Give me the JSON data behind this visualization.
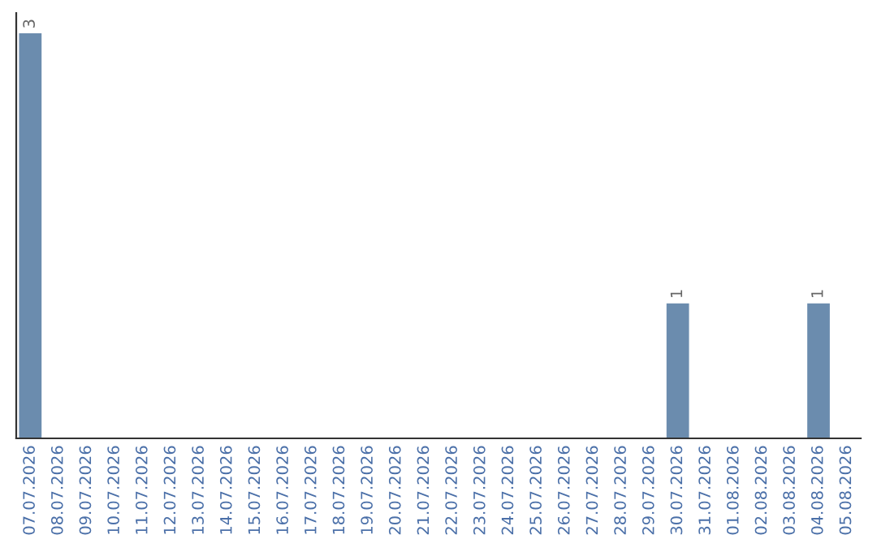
{
  "chart_data": {
    "type": "bar",
    "categories": [
      "07.07.2026",
      "08.07.2026",
      "09.07.2026",
      "10.07.2026",
      "11.07.2026",
      "12.07.2026",
      "13.07.2026",
      "14.07.2026",
      "15.07.2026",
      "16.07.2026",
      "17.07.2026",
      "18.07.2026",
      "19.07.2026",
      "20.07.2026",
      "21.07.2026",
      "22.07.2026",
      "23.07.2026",
      "24.07.2026",
      "25.07.2026",
      "26.07.2026",
      "27.07.2026",
      "28.07.2026",
      "29.07.2026",
      "30.07.2026",
      "31.07.2026",
      "01.08.2026",
      "02.08.2026",
      "03.08.2026",
      "04.08.2026",
      "05.08.2026"
    ],
    "values": [
      3,
      0,
      0,
      0,
      0,
      0,
      0,
      0,
      0,
      0,
      0,
      0,
      0,
      0,
      0,
      0,
      0,
      0,
      0,
      0,
      0,
      0,
      0,
      1,
      0,
      0,
      0,
      0,
      1,
      0
    ],
    "value_labels": [
      "3",
      null,
      null,
      null,
      null,
      null,
      null,
      null,
      null,
      null,
      null,
      null,
      null,
      null,
      null,
      null,
      null,
      null,
      null,
      null,
      null,
      null,
      null,
      "1",
      null,
      null,
      null,
      null,
      "1",
      null
    ],
    "color": "#6b8cae",
    "tick_labels": "x",
    "grid": false,
    "legend": false
  }
}
